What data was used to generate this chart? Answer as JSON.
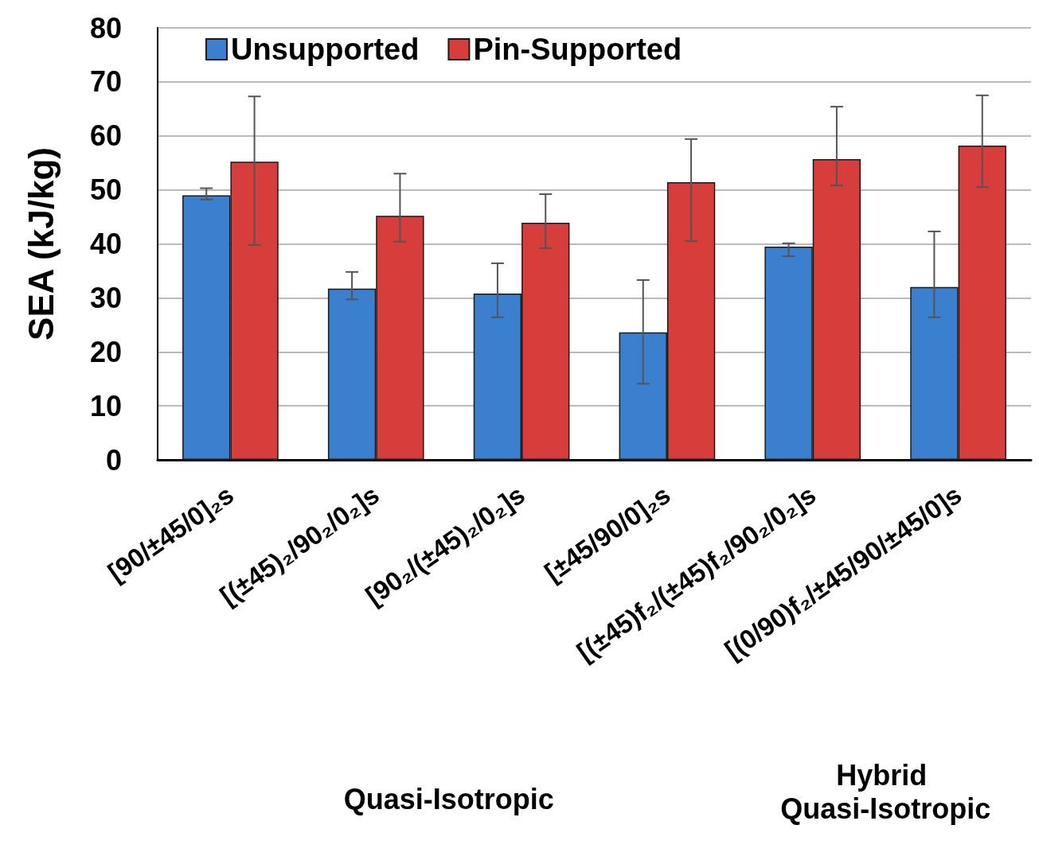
{
  "chart_data": {
    "type": "bar",
    "ylabel": "SEA (kJ/kg)",
    "categories": [
      "[90/±45/0]₂s",
      "[(±45)₂/90₂/0₂]s",
      "[90₂/(±45)₂/0₂]s",
      "[±45/90/0]₂s",
      "[(±45)f₂/(±45)f₂/90₂/0₂]s",
      "[(0/90)f₂/±45/90/±45/0]s"
    ],
    "series": [
      {
        "name": "Unsupported",
        "color": "#3b7fcf",
        "values": [
          49.0,
          31.7,
          30.8,
          23.6,
          39.5,
          32.0
        ],
        "errors": [
          [
            48.2,
            50.3
          ],
          [
            29.7,
            34.8
          ],
          [
            26.4,
            36.4
          ],
          [
            14.1,
            33.3
          ],
          [
            37.7,
            40.1
          ],
          [
            26.4,
            42.3
          ]
        ]
      },
      {
        "name": "Pin-Supported",
        "color": "#d63d3b",
        "values": [
          55.2,
          45.2,
          43.9,
          51.4,
          55.7,
          58.2
        ],
        "errors": [
          [
            39.8,
            67.3
          ],
          [
            40.4,
            53.0
          ],
          [
            39.2,
            49.2
          ],
          [
            40.5,
            59.4
          ],
          [
            50.8,
            65.4
          ],
          [
            50.5,
            67.5
          ]
        ]
      }
    ],
    "ylim": [
      0,
      80
    ],
    "yticks": [
      0,
      10,
      20,
      30,
      40,
      50,
      60,
      70,
      80
    ],
    "grid": "y",
    "legend": "top",
    "annotations": [
      "Quasi-Isotropic",
      "Hybrid Quasi-Isotropic"
    ]
  }
}
